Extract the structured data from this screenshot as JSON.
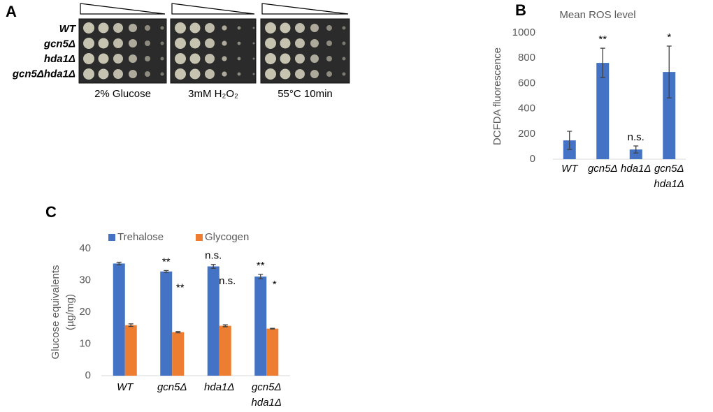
{
  "panel_a": {
    "label": "A",
    "strains": [
      "WT",
      "gcn5Δ",
      "hda1Δ",
      "gcn5Δhda1Δ"
    ],
    "conditions": [
      "2% Glucose",
      "3mM H₂O₂",
      "55°C 10min"
    ]
  },
  "chart_data": [
    {
      "panel_label": "B",
      "type": "bar",
      "title": "Mean ROS level",
      "ylabel": "DCFDA fluorescence",
      "categories": [
        "WT",
        "gcn5Δ",
        "hda1Δ",
        "gcn5Δ\nhda1Δ"
      ],
      "values": [
        149,
        762,
        77,
        690
      ],
      "errors": [
        72,
        116,
        28,
        205
      ],
      "annotations": [
        null,
        "**",
        "n.s.",
        "*"
      ],
      "color": "#4472c4",
      "ylim": [
        0,
        1000
      ],
      "yticks": [
        0,
        200,
        400,
        600,
        800,
        1000
      ],
      "grid": false
    },
    {
      "panel_label": "C",
      "type": "bar",
      "ylabel": [
        "Glucose equivalents",
        "(µg/mg)"
      ],
      "categories": [
        "WT",
        "gcn5Δ",
        "hda1Δ",
        "gcn5Δ\nhda1Δ"
      ],
      "series": [
        {
          "name": "Trehalose",
          "color": "#4472c4",
          "values": [
            35.3,
            32.8,
            34.4,
            31.2
          ],
          "errors": [
            0.4,
            0.3,
            0.6,
            0.7
          ],
          "annotations": [
            null,
            "**",
            "n.s.",
            "**"
          ]
        },
        {
          "name": "Glycogen",
          "color": "#ed7d31",
          "values": [
            15.9,
            13.7,
            15.7,
            14.8
          ],
          "errors": [
            0.4,
            0.2,
            0.3,
            0.1
          ],
          "annotations": [
            null,
            "**",
            "n.s.",
            "*"
          ]
        }
      ],
      "ylim": [
        0,
        40
      ],
      "yticks": [
        0,
        10,
        20,
        30,
        40
      ],
      "grid": false
    }
  ]
}
